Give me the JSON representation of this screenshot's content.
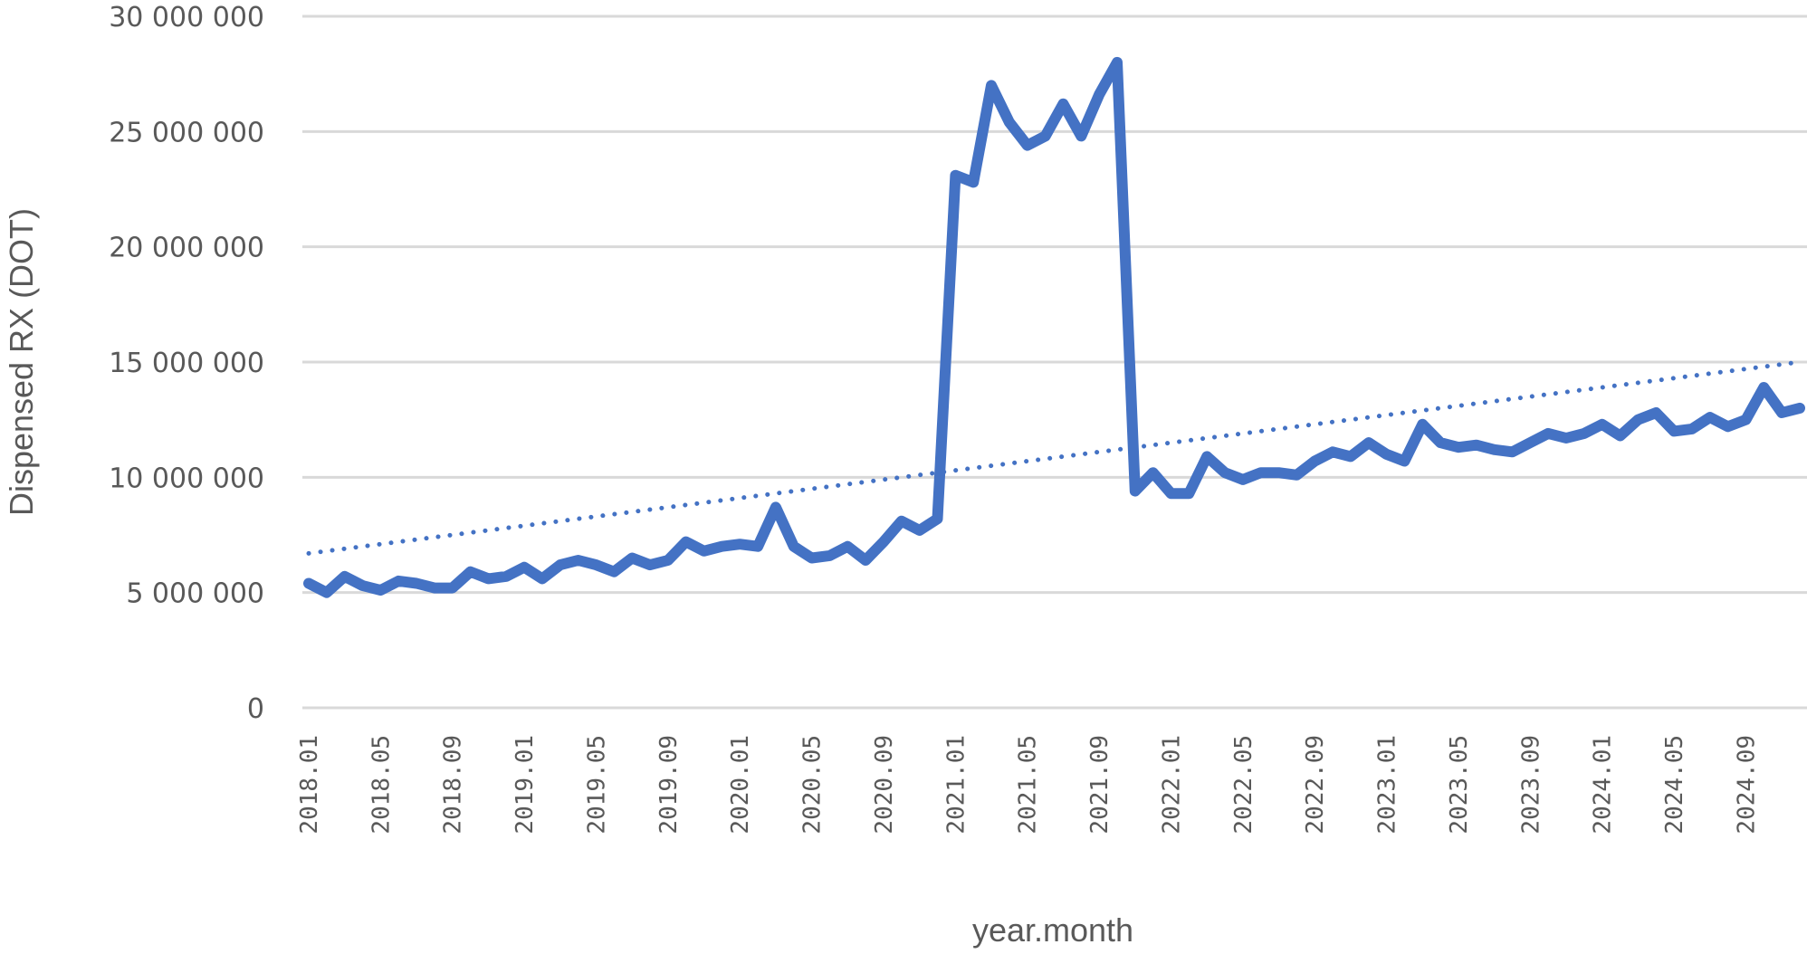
{
  "chart_data": {
    "type": "line",
    "title": "",
    "xlabel": "year.month",
    "ylabel": "Dispensed RX (DOT)",
    "ylim": [
      0,
      30000000
    ],
    "y_ticks": [
      0,
      5000000,
      10000000,
      15000000,
      20000000,
      25000000,
      30000000
    ],
    "y_tick_labels": [
      "0",
      "5 000 000",
      "10 000 000",
      "15 000 000",
      "20 000 000",
      "25 000 000",
      "30 000 000"
    ],
    "x_tick_labels": [
      "2018.01",
      "2018.05",
      "2018.09",
      "2019.01",
      "2019.05",
      "2019.09",
      "2020.01",
      "2020.05",
      "2020.09",
      "2021.01",
      "2021.05",
      "2021.09",
      "2022.01",
      "2022.05",
      "2022.09",
      "2023.01",
      "2023.05",
      "2023.09",
      "2024.01",
      "2024.05",
      "2024.09"
    ],
    "grid": true,
    "legend": null,
    "series": [
      {
        "name": "Dispensed RX",
        "style": "solid",
        "color": "#4472C4",
        "x_start": "2018.01",
        "x_end": "2024.12",
        "values": [
          5400000,
          5000000,
          5700000,
          5300000,
          5100000,
          5500000,
          5400000,
          5200000,
          5200000,
          5900000,
          5600000,
          5700000,
          6100000,
          5600000,
          6200000,
          6400000,
          6200000,
          5900000,
          6500000,
          6200000,
          6400000,
          7200000,
          6800000,
          7000000,
          7100000,
          7000000,
          8700000,
          7000000,
          6500000,
          6600000,
          7000000,
          6400000,
          7200000,
          8100000,
          7700000,
          8200000,
          23100000,
          22800000,
          27000000,
          25400000,
          24400000,
          24800000,
          26200000,
          24800000,
          26600000,
          28000000,
          9400000,
          10200000,
          9300000,
          9300000,
          10900000,
          10200000,
          9900000,
          10200000,
          10200000,
          10100000,
          10700000,
          11100000,
          10900000,
          11500000,
          11000000,
          10700000,
          12300000,
          11500000,
          11300000,
          11400000,
          11200000,
          11100000,
          11500000,
          11900000,
          11700000,
          11900000,
          12300000,
          11800000,
          12500000,
          12800000,
          12000000,
          12100000,
          12600000,
          12200000,
          12500000,
          13900000,
          12800000,
          13000000
        ]
      },
      {
        "name": "Linear trend",
        "style": "dotted",
        "color": "#4472C4",
        "values_endpoints": [
          6700000,
          15000000
        ]
      }
    ]
  },
  "colors": {
    "line": "#4472C4",
    "grid": "#D9D9D9",
    "text": "#595959"
  }
}
